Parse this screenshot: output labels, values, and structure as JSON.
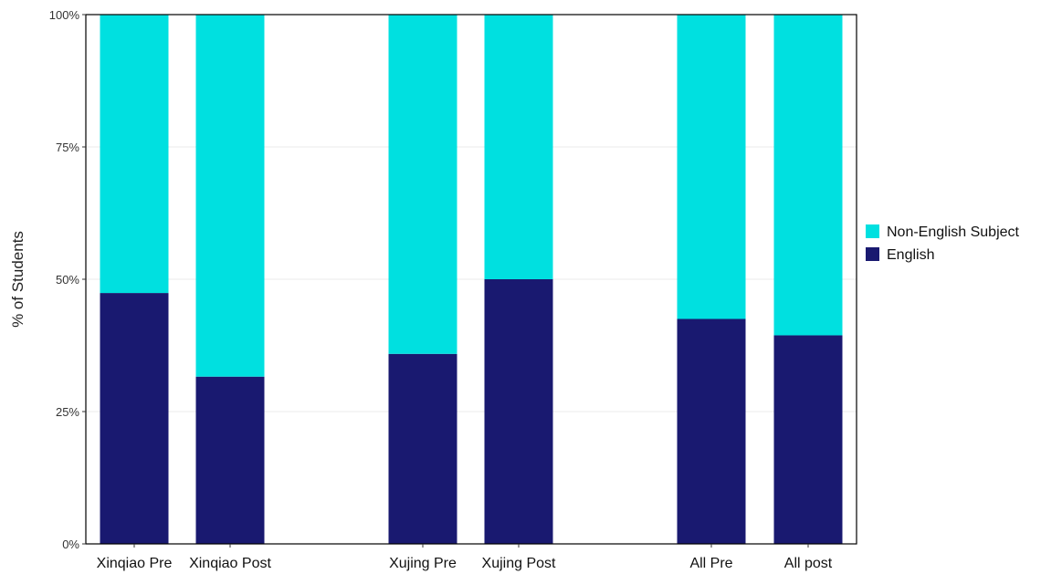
{
  "chart_data": {
    "type": "bar",
    "stacked": true,
    "categories": [
      "Xinqiao Pre",
      "Xinqiao Post",
      "Xujing Pre",
      "Xujing Post",
      "All Pre",
      "All post"
    ],
    "series": [
      {
        "name": "English",
        "color": "#191970",
        "values": [
          47.4,
          31.6,
          35.9,
          50.0,
          42.5,
          39.4
        ]
      },
      {
        "name": "Non-English Subject",
        "color": "#00e0e0",
        "values": [
          52.6,
          68.4,
          64.1,
          50.0,
          57.5,
          60.6
        ]
      }
    ],
    "ylabel": "% of Students",
    "ylim": [
      0,
      100
    ],
    "yticks": [
      0,
      25,
      50,
      75,
      100
    ],
    "ytick_labels": [
      "0%",
      "25%",
      "50%",
      "75%",
      "100%"
    ],
    "grid": true,
    "legend_position": "right",
    "legend_order": [
      "Non-English Subject",
      "English"
    ]
  }
}
